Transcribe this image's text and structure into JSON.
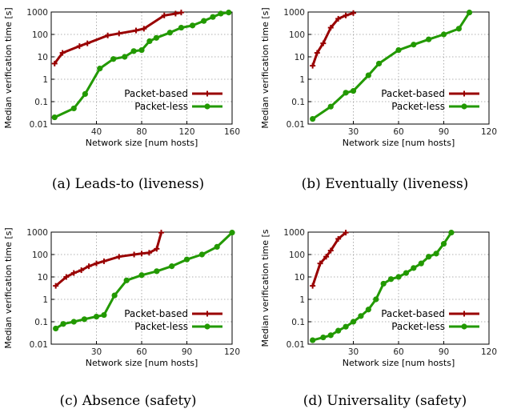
{
  "colors": {
    "packet_based": "#990000",
    "packet_less": "#229900"
  },
  "captions": [
    "(a) Leads-to (liveness)",
    "(b) Eventually (liveness)",
    "(c) Absence (safety)",
    "(d) Universality (safety)"
  ],
  "chart_data": [
    {
      "type": "line",
      "xlabel": "Network size [num hosts]",
      "ylabel": "Median verification time [s]",
      "yscale": "log",
      "xlim": [
        0,
        160
      ],
      "ylim": [
        0.01,
        1000
      ],
      "xticks": [
        "40",
        "80",
        "120",
        "160"
      ],
      "yticks": [
        "0.01",
        "0.1",
        "1",
        "10",
        "100",
        "1000"
      ],
      "grid": true,
      "legend": "bottom-right",
      "series": [
        {
          "name": "Packet-based",
          "marker": "plus",
          "x": [
            3,
            10,
            25,
            32,
            50,
            60,
            75,
            82,
            100,
            110,
            115
          ],
          "y": [
            5,
            15,
            30,
            40,
            90,
            110,
            150,
            180,
            700,
            850,
            950
          ]
        },
        {
          "name": "Packet-less",
          "marker": "circle",
          "x": [
            3,
            20,
            30,
            43,
            55,
            65,
            73,
            80,
            87,
            93,
            105,
            115,
            125,
            135,
            143,
            150,
            157
          ],
          "y": [
            0.02,
            0.05,
            0.22,
            3,
            8,
            10,
            18,
            20,
            50,
            70,
            120,
            200,
            250,
            400,
            600,
            850,
            950
          ]
        }
      ]
    },
    {
      "type": "line",
      "xlabel": "Network size [num hosts]",
      "ylabel": "Median verification time [s]",
      "yscale": "log",
      "xlim": [
        0,
        120
      ],
      "ylim": [
        0.01,
        1000
      ],
      "xticks": [
        "30",
        "60",
        "90",
        "120"
      ],
      "yticks": [
        "0.01",
        "0.1",
        "1",
        "10",
        "100",
        "1000"
      ],
      "grid": true,
      "legend": "bottom-right",
      "series": [
        {
          "name": "Packet-based",
          "marker": "plus",
          "x": [
            3,
            6,
            10,
            15,
            20,
            25,
            30
          ],
          "y": [
            4,
            15,
            40,
            200,
            500,
            700,
            900
          ]
        },
        {
          "name": "Packet-less",
          "marker": "circle",
          "x": [
            3,
            15,
            25,
            30,
            40,
            47,
            60,
            70,
            80,
            90,
            100,
            107
          ],
          "y": [
            0.017,
            0.06,
            0.25,
            0.3,
            1.5,
            5,
            20,
            35,
            60,
            100,
            180,
            950
          ]
        }
      ]
    },
    {
      "type": "line",
      "xlabel": "Network size [num hosts]",
      "ylabel": "Median verification time [s]",
      "yscale": "log",
      "xlim": [
        0,
        120
      ],
      "ylim": [
        0.01,
        1000
      ],
      "xticks": [
        "30",
        "60",
        "90",
        "120"
      ],
      "yticks": [
        "0.01",
        "0.1",
        "1",
        "10",
        "100",
        "1000"
      ],
      "grid": true,
      "legend": "bottom-right",
      "series": [
        {
          "name": "Packet-based",
          "marker": "plus",
          "x": [
            3,
            10,
            15,
            20,
            25,
            30,
            35,
            45,
            55,
            60,
            65,
            70,
            73
          ],
          "y": [
            4,
            10,
            15,
            20,
            30,
            40,
            50,
            80,
            100,
            110,
            120,
            180,
            950
          ]
        },
        {
          "name": "Packet-less",
          "marker": "circle",
          "x": [
            3,
            8,
            15,
            22,
            30,
            35,
            42,
            50,
            60,
            70,
            80,
            90,
            100,
            110,
            120
          ],
          "y": [
            0.05,
            0.08,
            0.1,
            0.13,
            0.17,
            0.2,
            1.5,
            7,
            12,
            18,
            30,
            60,
            100,
            220,
            950
          ]
        }
      ]
    },
    {
      "type": "line",
      "xlabel": "Network size [num hosts]",
      "ylabel": "Median verification time [s",
      "yscale": "log",
      "xlim": [
        0,
        120
      ],
      "ylim": [
        0.01,
        1000
      ],
      "xticks": [
        "30",
        "60",
        "90",
        "120"
      ],
      "yticks": [
        "0.01",
        "0.1",
        "1",
        "10",
        "100",
        "1000"
      ],
      "grid": true,
      "legend": "bottom-right",
      "series": [
        {
          "name": "Packet-based",
          "marker": "plus",
          "x": [
            3,
            8,
            12,
            15,
            20,
            25
          ],
          "y": [
            4,
            40,
            80,
            150,
            500,
            950
          ]
        },
        {
          "name": "Packet-less",
          "marker": "circle",
          "x": [
            3,
            10,
            15,
            20,
            25,
            30,
            35,
            40,
            45,
            50,
            55,
            60,
            65,
            70,
            75,
            80,
            85,
            90,
            95
          ],
          "y": [
            0.015,
            0.02,
            0.025,
            0.04,
            0.06,
            0.1,
            0.18,
            0.35,
            1,
            5,
            8,
            10,
            15,
            25,
            40,
            80,
            110,
            300,
            950
          ]
        }
      ]
    }
  ]
}
